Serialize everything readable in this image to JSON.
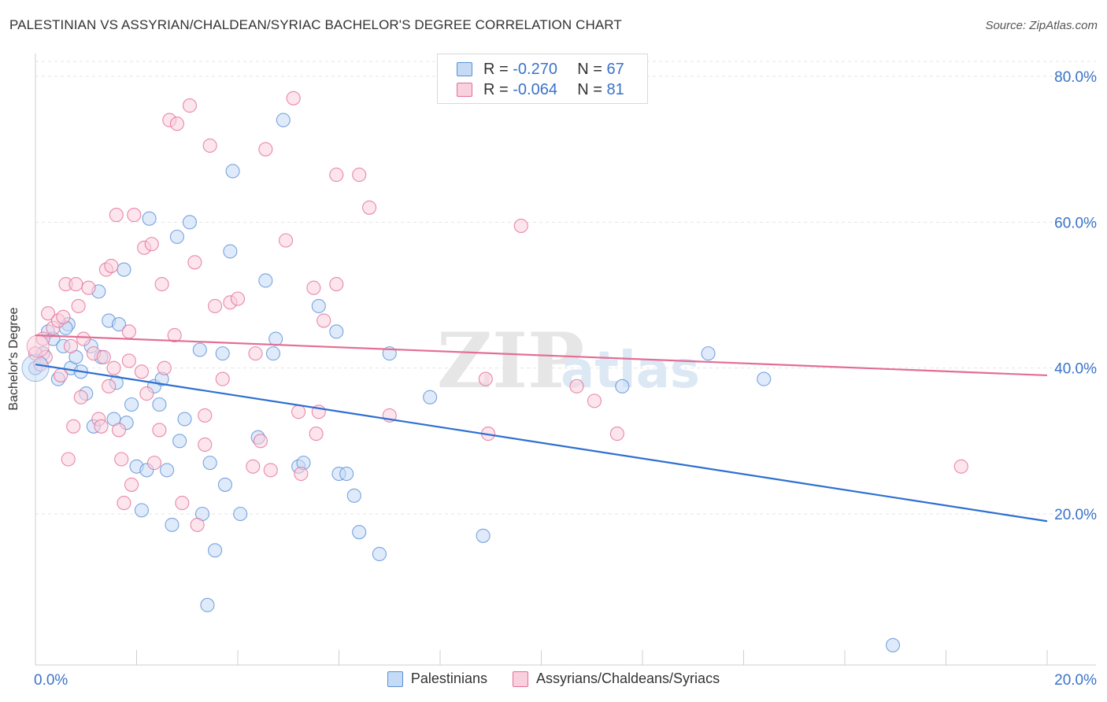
{
  "header": {
    "title": "PALESTINIAN VS ASSYRIAN/CHALDEAN/SYRIAC BACHELOR'S DEGREE CORRELATION CHART",
    "source": "Source: ZipAtlas.com"
  },
  "legend": {
    "rows": [
      {
        "r_label": "R =",
        "r_value": "-0.270",
        "n_label": "N =",
        "n_value": "67",
        "color": "#a9c8f0"
      },
      {
        "r_label": "R =",
        "r_value": "-0.064",
        "n_label": "N =",
        "n_value": "81",
        "color": "#f5b8cb"
      }
    ]
  },
  "watermark": {
    "part1": "ZIP",
    "part2": "atlas"
  },
  "chart_data": {
    "type": "scatter",
    "title": "PALESTINIAN VS ASSYRIAN/CHALDEAN/SYRIAC BACHELOR'S DEGREE CORRELATION CHART",
    "xlabel": "",
    "ylabel": "Bachelor's Degree",
    "xlim": [
      0,
      20
    ],
    "ylim": [
      0,
      80
    ],
    "x_tick_labels": [
      "0.0%",
      "20.0%"
    ],
    "y_tick_labels": [
      "20.0%",
      "40.0%",
      "60.0%",
      "80.0%"
    ],
    "y_ticks": [
      20,
      40,
      60,
      80
    ],
    "grid": true,
    "legend_position": "top-center",
    "series": [
      {
        "name": "Palestinians",
        "color": "#5a8fd6",
        "fill": "#c5dbf5",
        "trend": {
          "x": [
            0,
            20
          ],
          "y": [
            40.5,
            19.0
          ]
        },
        "points": [
          [
            0.0,
            40.0
          ],
          [
            0.25,
            45.0
          ],
          [
            0.35,
            44.0
          ],
          [
            0.45,
            38.5
          ],
          [
            0.55,
            43.0
          ],
          [
            0.65,
            46.0
          ],
          [
            0.7,
            40.0
          ],
          [
            0.8,
            41.5
          ],
          [
            0.9,
            39.5
          ],
          [
            1.0,
            36.5
          ],
          [
            1.1,
            43.0
          ],
          [
            1.15,
            32.0
          ],
          [
            1.25,
            50.5
          ],
          [
            1.3,
            41.5
          ],
          [
            1.45,
            46.5
          ],
          [
            1.55,
            33.0
          ],
          [
            1.6,
            38.0
          ],
          [
            1.65,
            46.0
          ],
          [
            1.75,
            53.5
          ],
          [
            1.8,
            32.5
          ],
          [
            1.9,
            35.0
          ],
          [
            2.0,
            26.5
          ],
          [
            2.1,
            20.5
          ],
          [
            2.2,
            26.0
          ],
          [
            2.25,
            60.5
          ],
          [
            2.35,
            37.5
          ],
          [
            2.45,
            35.0
          ],
          [
            2.5,
            38.5
          ],
          [
            2.6,
            26.0
          ],
          [
            2.7,
            18.5
          ],
          [
            2.8,
            58.0
          ],
          [
            2.85,
            30.0
          ],
          [
            2.95,
            33.0
          ],
          [
            3.05,
            60.0
          ],
          [
            3.25,
            42.5
          ],
          [
            3.3,
            20.0
          ],
          [
            3.4,
            7.5
          ],
          [
            3.45,
            27.0
          ],
          [
            3.55,
            15.0
          ],
          [
            3.7,
            42.0
          ],
          [
            3.75,
            24.0
          ],
          [
            3.85,
            56.0
          ],
          [
            3.9,
            67.0
          ],
          [
            4.05,
            20.0
          ],
          [
            4.4,
            30.5
          ],
          [
            4.55,
            52.0
          ],
          [
            4.7,
            42.0
          ],
          [
            4.75,
            44.0
          ],
          [
            4.9,
            74.0
          ],
          [
            5.2,
            26.5
          ],
          [
            5.3,
            27.0
          ],
          [
            5.6,
            48.5
          ],
          [
            5.95,
            45.0
          ],
          [
            6.0,
            25.5
          ],
          [
            6.15,
            25.5
          ],
          [
            6.3,
            22.5
          ],
          [
            6.4,
            17.5
          ],
          [
            6.8,
            14.5
          ],
          [
            7.0,
            42.0
          ],
          [
            7.8,
            36.0
          ],
          [
            8.85,
            17.0
          ],
          [
            11.6,
            37.5
          ],
          [
            13.3,
            42.0
          ],
          [
            14.4,
            38.5
          ],
          [
            16.95,
            2.0
          ],
          [
            0.15,
            42.0
          ],
          [
            0.6,
            45.5
          ]
        ]
      },
      {
        "name": "Assyrians/Chaldeans/Syriacs",
        "color": "#e36e95",
        "fill": "#f9d0dd",
        "trend": {
          "x": [
            0,
            20
          ],
          "y": [
            44.5,
            39.0
          ]
        },
        "points": [
          [
            0.0,
            42.0
          ],
          [
            0.15,
            44.0
          ],
          [
            0.2,
            41.5
          ],
          [
            0.25,
            47.5
          ],
          [
            0.35,
            45.5
          ],
          [
            0.45,
            46.5
          ],
          [
            0.5,
            39.0
          ],
          [
            0.55,
            47.0
          ],
          [
            0.6,
            51.5
          ],
          [
            0.65,
            27.5
          ],
          [
            0.7,
            43.0
          ],
          [
            0.75,
            32.0
          ],
          [
            0.8,
            51.5
          ],
          [
            0.85,
            48.5
          ],
          [
            0.9,
            36.0
          ],
          [
            0.95,
            44.0
          ],
          [
            1.05,
            51.0
          ],
          [
            1.15,
            42.0
          ],
          [
            1.25,
            33.0
          ],
          [
            1.3,
            32.0
          ],
          [
            1.35,
            41.5
          ],
          [
            1.4,
            53.5
          ],
          [
            1.45,
            37.5
          ],
          [
            1.5,
            54.0
          ],
          [
            1.55,
            40.0
          ],
          [
            1.6,
            61.0
          ],
          [
            1.65,
            31.5
          ],
          [
            1.7,
            27.5
          ],
          [
            1.75,
            21.5
          ],
          [
            1.85,
            45.0
          ],
          [
            1.9,
            24.0
          ],
          [
            1.95,
            61.0
          ],
          [
            2.1,
            39.5
          ],
          [
            2.15,
            56.5
          ],
          [
            2.2,
            36.5
          ],
          [
            2.3,
            57.0
          ],
          [
            2.35,
            27.0
          ],
          [
            2.45,
            31.5
          ],
          [
            2.5,
            51.5
          ],
          [
            2.55,
            40.0
          ],
          [
            2.65,
            74.0
          ],
          [
            2.75,
            44.5
          ],
          [
            2.8,
            73.5
          ],
          [
            2.9,
            21.5
          ],
          [
            3.05,
            76.0
          ],
          [
            3.15,
            54.5
          ],
          [
            3.2,
            18.5
          ],
          [
            3.35,
            29.5
          ],
          [
            3.35,
            33.5
          ],
          [
            3.45,
            70.5
          ],
          [
            3.55,
            48.5
          ],
          [
            3.7,
            38.5
          ],
          [
            3.85,
            49.0
          ],
          [
            4.0,
            49.5
          ],
          [
            4.3,
            26.5
          ],
          [
            4.35,
            42.0
          ],
          [
            4.45,
            30.0
          ],
          [
            4.55,
            70.0
          ],
          [
            4.65,
            26.0
          ],
          [
            4.95,
            57.5
          ],
          [
            5.1,
            77.0
          ],
          [
            5.2,
            34.0
          ],
          [
            5.25,
            25.5
          ],
          [
            5.5,
            51.0
          ],
          [
            5.55,
            31.0
          ],
          [
            5.6,
            34.0
          ],
          [
            5.7,
            46.5
          ],
          [
            5.95,
            66.5
          ],
          [
            5.95,
            51.5
          ],
          [
            6.4,
            66.5
          ],
          [
            6.6,
            62.0
          ],
          [
            7.0,
            33.5
          ],
          [
            8.9,
            38.5
          ],
          [
            8.95,
            31.0
          ],
          [
            9.6,
            59.5
          ],
          [
            10.7,
            37.5
          ],
          [
            11.05,
            35.5
          ],
          [
            11.5,
            31.0
          ],
          [
            18.3,
            26.5
          ],
          [
            0.1,
            40.5
          ],
          [
            1.85,
            41.0
          ]
        ]
      }
    ]
  },
  "bottom_legend": {
    "items": [
      {
        "label": "Palestinians",
        "color": "#c5dbf5",
        "border": "#5a8fd6"
      },
      {
        "label": "Assyrians/Chaldeans/Syriacs",
        "color": "#f9d0dd",
        "border": "#e36e95"
      }
    ]
  }
}
